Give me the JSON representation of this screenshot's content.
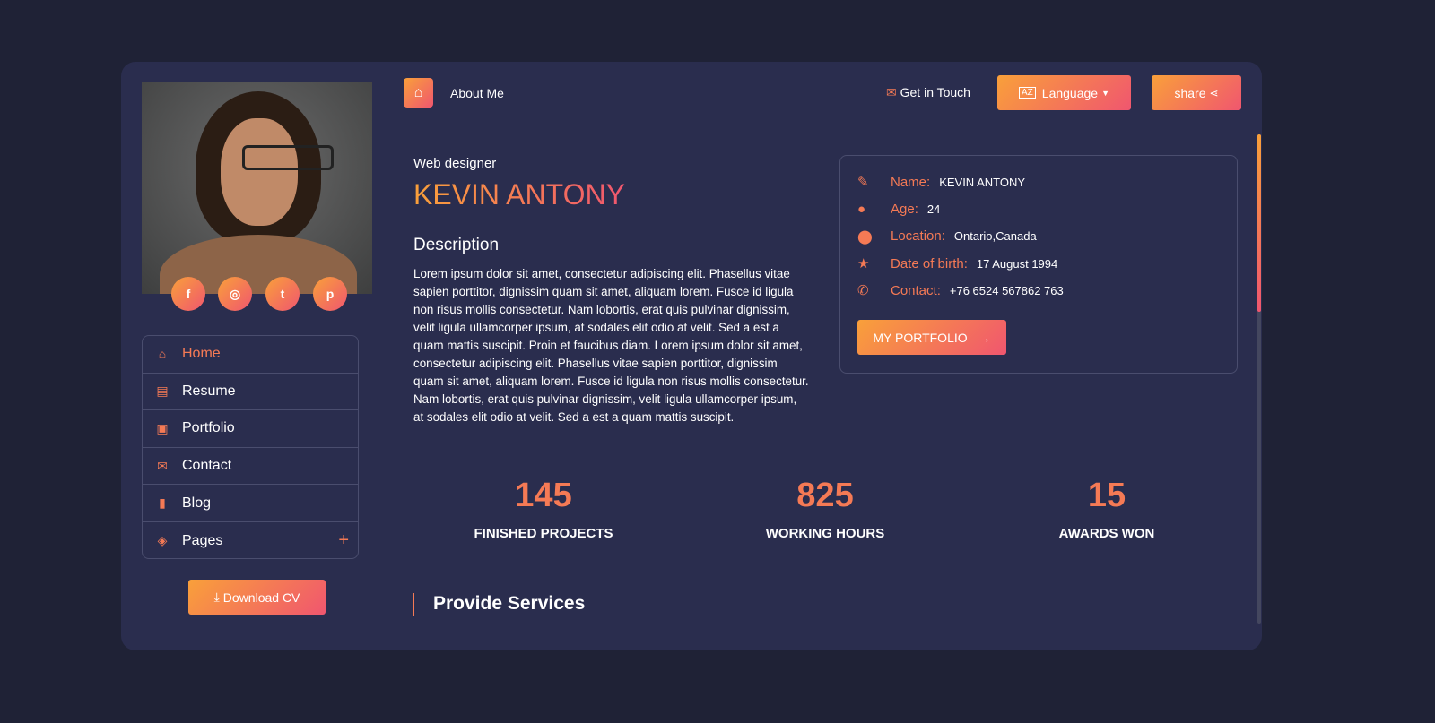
{
  "topbar": {
    "home_icon": "home-icon",
    "title": "About Me",
    "get_in_touch": "Get in Touch",
    "language": "Language",
    "share": "share"
  },
  "social": [
    {
      "icon": "facebook-icon",
      "glyph": "f"
    },
    {
      "icon": "instagram-icon",
      "glyph": "◎"
    },
    {
      "icon": "twitter-icon",
      "glyph": "t"
    },
    {
      "icon": "pinterest-icon",
      "glyph": "p"
    }
  ],
  "menu": [
    {
      "label": "Home",
      "icon": "home-icon",
      "glyph": "⌂",
      "active": true
    },
    {
      "label": "Resume",
      "icon": "file-icon",
      "glyph": "▤"
    },
    {
      "label": "Portfolio",
      "icon": "images-icon",
      "glyph": "▣"
    },
    {
      "label": "Contact",
      "icon": "envelope-icon",
      "glyph": "✉"
    },
    {
      "label": "Blog",
      "icon": "book-icon",
      "glyph": "▮"
    },
    {
      "label": "Pages",
      "icon": "layers-icon",
      "glyph": "◈",
      "expand": "+"
    }
  ],
  "download_cv": "Download CV",
  "profile": {
    "role": "Web designer",
    "name": "KEVIN ANTONY",
    "description_title": "Description",
    "description": "Lorem ipsum dolor sit amet, consectetur adipiscing elit. Phasellus vitae sapien porttitor, dignissim quam sit amet, aliquam lorem. Fusce id ligula non risus mollis consectetur. Nam lobortis, erat quis pulvinar dignissim, velit ligula ullamcorper ipsum, at sodales elit odio at velit. Sed a est a quam mattis suscipit. Proin et faucibus diam. Lorem ipsum dolor sit amet, consectetur adipiscing elit. Phasellus vitae sapien porttitor, dignissim quam sit amet, aliquam lorem. Fusce id ligula non risus mollis consectetur. Nam lobortis, erat quis pulvinar dignissim, velit ligula ullamcorper ipsum, at sodales elit odio at velit. Sed a est a quam mattis suscipit."
  },
  "info": [
    {
      "label": "Name:",
      "value": "KEVIN ANTONY",
      "icon": "pencil-icon",
      "glyph": "✎"
    },
    {
      "label": "Age:",
      "value": "24",
      "icon": "user-icon",
      "glyph": "●"
    },
    {
      "label": "Location:",
      "value": "Ontario,Canada",
      "icon": "map-pin-icon",
      "glyph": "⬤"
    },
    {
      "label": "Date of birth:",
      "value": "17 August 1994",
      "icon": "star-icon",
      "glyph": "★"
    },
    {
      "label": "Contact:",
      "value": "+76 6524 567862 763",
      "icon": "phone-icon",
      "glyph": "✆"
    }
  ],
  "portfolio_button": "MY PORTFOLIO",
  "stats": [
    {
      "value": "145",
      "label": "FINISHED PROJECTS"
    },
    {
      "value": "825",
      "label": "WORKING HOURS"
    },
    {
      "value": "15",
      "label": "AWARDS WON"
    }
  ],
  "services_title": "Provide Services",
  "colors": {
    "background": "#1f2236",
    "card": "#2a2d4e",
    "accent_start": "#f9a03a",
    "accent_end": "#f0566f"
  }
}
